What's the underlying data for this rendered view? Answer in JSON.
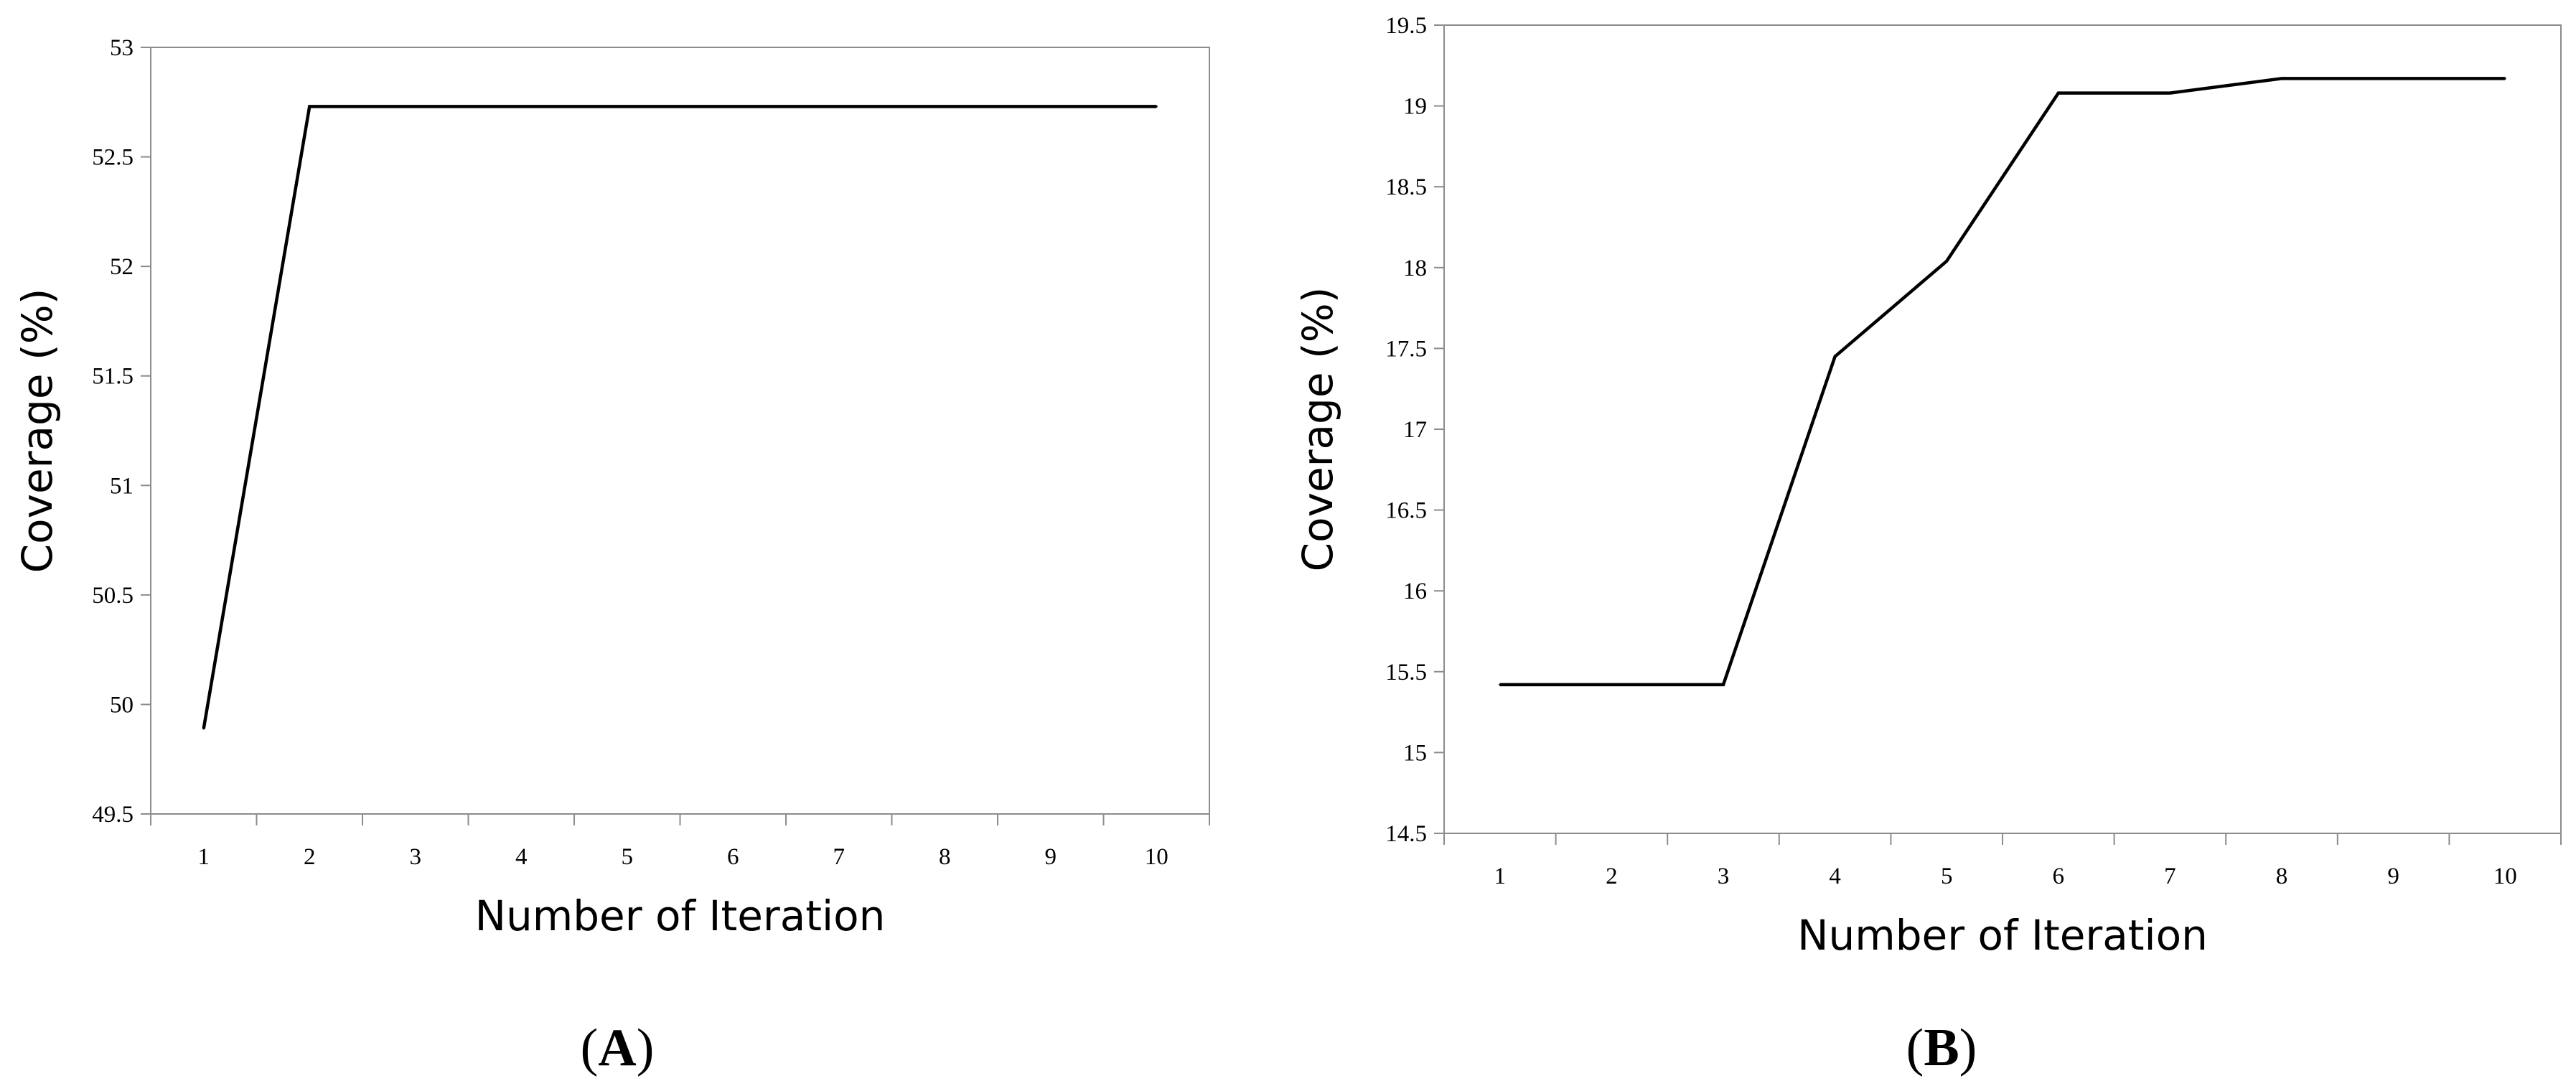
{
  "chart_data": [
    {
      "panel": "A",
      "type": "line",
      "xlabel": "Number of Iteration",
      "ylabel": "Coverage (%)",
      "x": [
        1,
        2,
        3,
        4,
        5,
        6,
        7,
        8,
        9,
        10
      ],
      "series": [
        {
          "values": [
            49.89,
            52.73,
            52.73,
            52.73,
            52.73,
            52.73,
            52.73,
            52.73,
            52.73,
            52.73
          ]
        }
      ],
      "ylim": [
        49.5,
        53
      ],
      "yticks": [
        "49.5",
        "50",
        "50.5",
        "51",
        "51.5",
        "52",
        "52.5",
        "53"
      ],
      "xticks": [
        "1",
        "2",
        "3",
        "4",
        "5",
        "6",
        "7",
        "8",
        "9",
        "10"
      ],
      "grid": false,
      "legend": "none",
      "color": "#000000"
    },
    {
      "panel": "B",
      "type": "line",
      "xlabel": "Number of Iteration",
      "ylabel": "Coverage (%)",
      "x": [
        1,
        2,
        3,
        4,
        5,
        6,
        7,
        8,
        9,
        10
      ],
      "series": [
        {
          "values": [
            15.42,
            15.42,
            15.42,
            17.45,
            18.04,
            19.08,
            19.08,
            19.17,
            19.17,
            19.17
          ]
        }
      ],
      "ylim": [
        14.5,
        19.5
      ],
      "yticks": [
        "14.5",
        "15",
        "15.5",
        "16",
        "16.5",
        "17",
        "17.5",
        "18",
        "18.5",
        "19",
        "19.5"
      ],
      "xticks": [
        "1",
        "2",
        "3",
        "4",
        "5",
        "6",
        "7",
        "8",
        "9",
        "10"
      ],
      "grid": false,
      "legend": "none",
      "color": "#000000"
    }
  ],
  "panel_labels": {
    "a": {
      "open": "(",
      "letter": "A",
      "close": ")"
    },
    "b": {
      "open": "(",
      "letter": "B",
      "close": ")"
    }
  }
}
